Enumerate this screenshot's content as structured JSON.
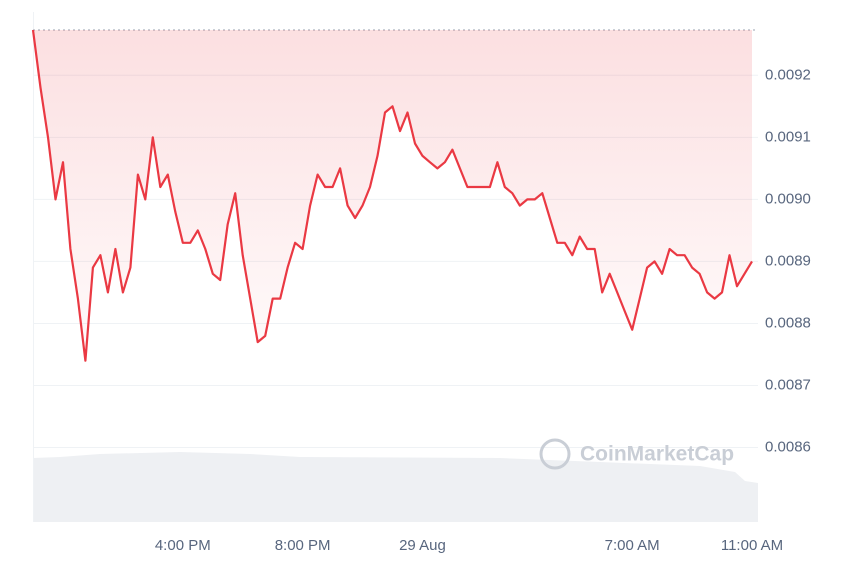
{
  "chart_data": {
    "type": "line",
    "watermark": "CoinMarketCap",
    "color": "#ea3943",
    "categories": [
      null,
      null,
      null,
      null,
      null,
      null,
      null,
      null,
      null,
      null,
      null,
      null,
      null,
      null,
      null,
      null,
      null,
      null,
      null,
      null,
      "4:00 PM",
      null,
      null,
      null,
      null,
      null,
      null,
      null,
      null,
      null,
      null,
      null,
      null,
      null,
      null,
      null,
      "8:00 PM",
      null,
      null,
      null,
      null,
      null,
      null,
      null,
      null,
      null,
      null,
      null,
      null,
      null,
      null,
      null,
      "29 Aug",
      null,
      null,
      null,
      null,
      null,
      null,
      null,
      null,
      null,
      null,
      null,
      null,
      null,
      null,
      null,
      null,
      null,
      null,
      null,
      null,
      null,
      null,
      null,
      null,
      null,
      null,
      null,
      "7:00 AM",
      null,
      null,
      null,
      null,
      null,
      null,
      null,
      null,
      null,
      null,
      null,
      null,
      null,
      null,
      null,
      "11:00 AM"
    ],
    "values": [
      0.009273,
      0.00918,
      0.0091,
      0.009,
      0.00906,
      0.00892,
      0.00884,
      0.00874,
      0.00889,
      0.00891,
      0.00885,
      0.00892,
      0.00885,
      0.00889,
      0.00904,
      0.009,
      0.0091,
      0.00902,
      0.00904,
      0.00898,
      0.00893,
      0.00893,
      0.00895,
      0.00892,
      0.00888,
      0.00887,
      0.00896,
      0.00901,
      0.00891,
      0.00884,
      0.00877,
      0.00878,
      0.00884,
      0.00884,
      0.00889,
      0.00893,
      0.00892,
      0.00899,
      0.00904,
      0.00902,
      0.00902,
      0.00905,
      0.00899,
      0.00897,
      0.00899,
      0.00902,
      0.00907,
      0.00914,
      0.00915,
      0.00911,
      0.00914,
      0.00909,
      0.00907,
      0.00906,
      0.00905,
      0.00906,
      0.00908,
      0.00905,
      0.00902,
      0.00902,
      0.00902,
      0.00902,
      0.00906,
      0.00902,
      0.00901,
      0.00899,
      0.009,
      0.009,
      0.00901,
      0.00897,
      0.00893,
      0.00893,
      0.00891,
      0.00894,
      0.00892,
      0.00892,
      0.00885,
      0.00888,
      0.00885,
      0.00882,
      0.00879,
      0.00884,
      0.00889,
      0.0089,
      0.00888,
      0.00892,
      0.00891,
      0.00891,
      0.00889,
      0.00888,
      0.00885,
      0.00884,
      0.00885,
      0.00891,
      0.00886,
      0.00888,
      0.0089
    ],
    "ylim": [
      0.00848,
      0.009273
    ],
    "yticks": [
      0.0086,
      0.0087,
      0.0088,
      0.0089,
      {
        "value": 0.009,
        "label": "0.0090"
      },
      0.0091,
      0.0092
    ],
    "grid": true
  }
}
